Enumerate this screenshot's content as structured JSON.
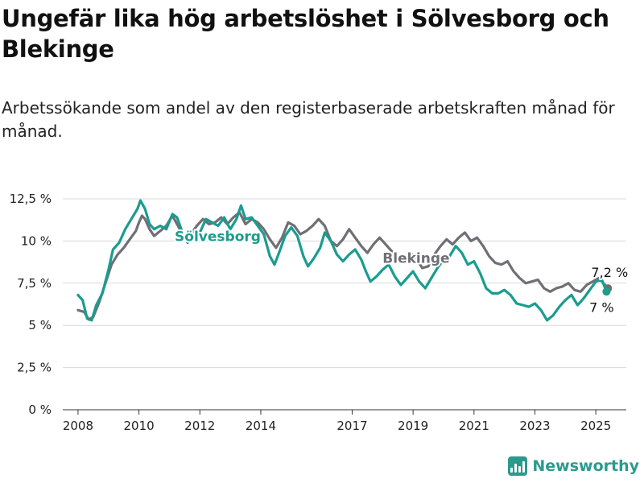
{
  "title": "Ungefär lika hög arbetslöshet i Sölvesborg och Blekinge",
  "subtitle": "Arbetssökande som andel av den registerbaserade arbetskraften månad för månad.",
  "brand": {
    "name": "Newsworthy",
    "icon": "bar-chart-icon",
    "color": "#2b9a8e"
  },
  "chart_data": {
    "type": "line",
    "title": "Ungefär lika hög arbetslöshet i Sölvesborg och Blekinge",
    "ylim": [
      0,
      12.5
    ],
    "xlim": [
      2007.5,
      2026.0
    ],
    "y_ticks": [
      {
        "value": 0,
        "label": "0 %"
      },
      {
        "value": 2.5,
        "label": "2,5 %"
      },
      {
        "value": 5,
        "label": "5 %"
      },
      {
        "value": 7.5,
        "label": "7,5 %"
      },
      {
        "value": 10,
        "label": "10 %"
      },
      {
        "value": 12.5,
        "label": "12,5 %"
      }
    ],
    "x_ticks": [
      {
        "value": 2008,
        "label": "2008"
      },
      {
        "value": 2010,
        "label": "2010"
      },
      {
        "value": 2012,
        "label": "2012"
      },
      {
        "value": 2014,
        "label": "2014"
      },
      {
        "value": 2017,
        "label": "2017"
      },
      {
        "value": 2019,
        "label": "2019"
      },
      {
        "value": 2021,
        "label": "2021"
      },
      {
        "value": 2023,
        "label": "2023"
      },
      {
        "value": 2025,
        "label": "2025"
      }
    ],
    "grid": true,
    "series": [
      {
        "name": "Blekinge",
        "color": "#706f75",
        "end_label": "7,2 %",
        "points": [
          [
            2008.0,
            5.9
          ],
          [
            2008.2,
            5.8
          ],
          [
            2008.35,
            5.35
          ],
          [
            2008.5,
            5.5
          ],
          [
            2008.7,
            6.4
          ],
          [
            2008.9,
            7.5
          ],
          [
            2009.1,
            8.6
          ],
          [
            2009.3,
            9.2
          ],
          [
            2009.5,
            9.6
          ],
          [
            2009.7,
            10.1
          ],
          [
            2009.9,
            10.6
          ],
          [
            2010.0,
            11.1
          ],
          [
            2010.1,
            11.5
          ],
          [
            2010.2,
            11.3
          ],
          [
            2010.35,
            10.7
          ],
          [
            2010.5,
            10.3
          ],
          [
            2010.7,
            10.6
          ],
          [
            2010.9,
            10.9
          ],
          [
            2011.1,
            11.5
          ],
          [
            2011.25,
            11.0
          ],
          [
            2011.4,
            10.5
          ],
          [
            2011.55,
            10.1
          ],
          [
            2011.7,
            10.4
          ],
          [
            2011.9,
            10.9
          ],
          [
            2012.1,
            11.3
          ],
          [
            2012.3,
            11.0
          ],
          [
            2012.5,
            11.1
          ],
          [
            2012.7,
            11.4
          ],
          [
            2012.9,
            11.0
          ],
          [
            2013.1,
            11.4
          ],
          [
            2013.3,
            11.7
          ],
          [
            2013.5,
            11.0
          ],
          [
            2013.7,
            11.3
          ],
          [
            2013.9,
            11.1
          ],
          [
            2014.1,
            10.7
          ],
          [
            2014.3,
            10.1
          ],
          [
            2014.5,
            9.6
          ],
          [
            2014.7,
            10.2
          ],
          [
            2014.9,
            11.1
          ],
          [
            2015.1,
            10.9
          ],
          [
            2015.3,
            10.4
          ],
          [
            2015.5,
            10.6
          ],
          [
            2015.7,
            10.9
          ],
          [
            2015.9,
            11.3
          ],
          [
            2016.1,
            10.9
          ],
          [
            2016.3,
            10.0
          ],
          [
            2016.5,
            9.7
          ],
          [
            2016.7,
            10.1
          ],
          [
            2016.9,
            10.7
          ],
          [
            2017.1,
            10.2
          ],
          [
            2017.3,
            9.7
          ],
          [
            2017.5,
            9.3
          ],
          [
            2017.7,
            9.8
          ],
          [
            2017.9,
            10.2
          ],
          [
            2018.1,
            9.8
          ],
          [
            2018.3,
            9.4
          ],
          [
            2018.5,
            8.8
          ],
          [
            2018.7,
            8.9
          ],
          [
            2018.9,
            9.3
          ],
          [
            2019.1,
            9.0
          ],
          [
            2019.3,
            8.4
          ],
          [
            2019.5,
            8.5
          ],
          [
            2019.7,
            9.2
          ],
          [
            2019.9,
            9.7
          ],
          [
            2020.1,
            10.1
          ],
          [
            2020.3,
            9.8
          ],
          [
            2020.5,
            10.2
          ],
          [
            2020.7,
            10.5
          ],
          [
            2020.9,
            10.0
          ],
          [
            2021.1,
            10.2
          ],
          [
            2021.3,
            9.7
          ],
          [
            2021.5,
            9.1
          ],
          [
            2021.7,
            8.7
          ],
          [
            2021.9,
            8.6
          ],
          [
            2022.1,
            8.8
          ],
          [
            2022.3,
            8.2
          ],
          [
            2022.5,
            7.8
          ],
          [
            2022.7,
            7.5
          ],
          [
            2022.9,
            7.6
          ],
          [
            2023.1,
            7.7
          ],
          [
            2023.3,
            7.2
          ],
          [
            2023.5,
            7.0
          ],
          [
            2023.7,
            7.2
          ],
          [
            2023.9,
            7.3
          ],
          [
            2024.1,
            7.5
          ],
          [
            2024.3,
            7.1
          ],
          [
            2024.5,
            7.0
          ],
          [
            2024.7,
            7.4
          ],
          [
            2024.9,
            7.6
          ],
          [
            2025.1,
            7.8
          ],
          [
            2025.3,
            7.4
          ],
          [
            2025.4,
            7.2
          ]
        ]
      },
      {
        "name": "Sölvesborg",
        "color": "#1a9c8f",
        "end_label": "7 %",
        "points": [
          [
            2008.0,
            6.8
          ],
          [
            2008.15,
            6.5
          ],
          [
            2008.3,
            5.4
          ],
          [
            2008.45,
            5.3
          ],
          [
            2008.6,
            6.2
          ],
          [
            2008.8,
            6.9
          ],
          [
            2009.0,
            8.3
          ],
          [
            2009.15,
            9.5
          ],
          [
            2009.35,
            9.9
          ],
          [
            2009.55,
            10.7
          ],
          [
            2009.75,
            11.3
          ],
          [
            2009.95,
            11.9
          ],
          [
            2010.05,
            12.4
          ],
          [
            2010.2,
            11.9
          ],
          [
            2010.35,
            11.0
          ],
          [
            2010.5,
            10.7
          ],
          [
            2010.7,
            10.9
          ],
          [
            2010.9,
            10.7
          ],
          [
            2011.1,
            11.6
          ],
          [
            2011.25,
            11.4
          ],
          [
            2011.45,
            10.4
          ],
          [
            2011.6,
            9.9
          ],
          [
            2011.8,
            10.6
          ],
          [
            2012.0,
            10.5
          ],
          [
            2012.2,
            11.3
          ],
          [
            2012.4,
            11.1
          ],
          [
            2012.6,
            10.9
          ],
          [
            2012.8,
            11.4
          ],
          [
            2013.0,
            10.7
          ],
          [
            2013.2,
            11.3
          ],
          [
            2013.35,
            12.1
          ],
          [
            2013.5,
            11.3
          ],
          [
            2013.7,
            11.4
          ],
          [
            2013.9,
            10.9
          ],
          [
            2014.1,
            10.4
          ],
          [
            2014.3,
            9.1
          ],
          [
            2014.45,
            8.6
          ],
          [
            2014.6,
            9.3
          ],
          [
            2014.8,
            10.3
          ],
          [
            2015.0,
            10.8
          ],
          [
            2015.2,
            10.3
          ],
          [
            2015.4,
            9.1
          ],
          [
            2015.55,
            8.5
          ],
          [
            2015.75,
            9.0
          ],
          [
            2015.95,
            9.6
          ],
          [
            2016.1,
            10.5
          ],
          [
            2016.3,
            10.0
          ],
          [
            2016.5,
            9.2
          ],
          [
            2016.7,
            8.8
          ],
          [
            2016.9,
            9.2
          ],
          [
            2017.1,
            9.5
          ],
          [
            2017.3,
            8.9
          ],
          [
            2017.45,
            8.2
          ],
          [
            2017.6,
            7.6
          ],
          [
            2017.8,
            7.9
          ],
          [
            2018.0,
            8.3
          ],
          [
            2018.2,
            8.6
          ],
          [
            2018.4,
            7.9
          ],
          [
            2018.6,
            7.4
          ],
          [
            2018.8,
            7.8
          ],
          [
            2019.0,
            8.2
          ],
          [
            2019.2,
            7.6
          ],
          [
            2019.4,
            7.2
          ],
          [
            2019.6,
            7.8
          ],
          [
            2019.8,
            8.4
          ],
          [
            2020.0,
            8.9
          ],
          [
            2020.2,
            9.1
          ],
          [
            2020.4,
            9.7
          ],
          [
            2020.6,
            9.3
          ],
          [
            2020.8,
            8.6
          ],
          [
            2021.0,
            8.8
          ],
          [
            2021.2,
            8.1
          ],
          [
            2021.4,
            7.2
          ],
          [
            2021.6,
            6.9
          ],
          [
            2021.8,
            6.9
          ],
          [
            2022.0,
            7.1
          ],
          [
            2022.2,
            6.8
          ],
          [
            2022.4,
            6.3
          ],
          [
            2022.6,
            6.2
          ],
          [
            2022.8,
            6.1
          ],
          [
            2023.0,
            6.3
          ],
          [
            2023.2,
            5.9
          ],
          [
            2023.4,
            5.3
          ],
          [
            2023.6,
            5.6
          ],
          [
            2023.8,
            6.1
          ],
          [
            2024.0,
            6.5
          ],
          [
            2024.2,
            6.8
          ],
          [
            2024.4,
            6.2
          ],
          [
            2024.6,
            6.6
          ],
          [
            2024.8,
            7.1
          ],
          [
            2025.0,
            7.6
          ],
          [
            2025.2,
            7.7
          ],
          [
            2025.35,
            7.0
          ]
        ]
      }
    ],
    "series_labels": [
      {
        "series": "Sölvesborg",
        "text": "Sölvesborg",
        "x": 2014.0,
        "y": 10.0,
        "anchor": "end"
      },
      {
        "series": "Blekinge",
        "text": "Blekinge",
        "x": 2018.0,
        "y": 8.7,
        "anchor": "start"
      }
    ]
  }
}
